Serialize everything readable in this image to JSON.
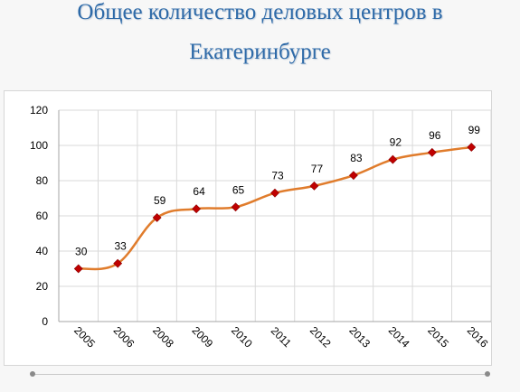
{
  "title": {
    "line1": "Общее количество деловых центров в",
    "line2": "Екатеринбурге"
  },
  "colors": {
    "title": "#2e6aa8",
    "line": "#e07c2c",
    "marker": "#c00000",
    "grid": "#d9d9d9",
    "background": "#f7f7f7"
  },
  "chart_data": {
    "type": "line",
    "categories": [
      "2005",
      "2006",
      "2008",
      "2009",
      "2010",
      "2011",
      "2012",
      "2013",
      "2014",
      "2015",
      "2016"
    ],
    "values": [
      30,
      33,
      59,
      64,
      65,
      73,
      77,
      83,
      92,
      96,
      99
    ],
    "ylim": [
      0,
      120
    ],
    "yticks": [
      0,
      20,
      40,
      60,
      80,
      100,
      120
    ],
    "grid": true,
    "smooth": true,
    "data_labels": true,
    "marker": "diamond"
  }
}
